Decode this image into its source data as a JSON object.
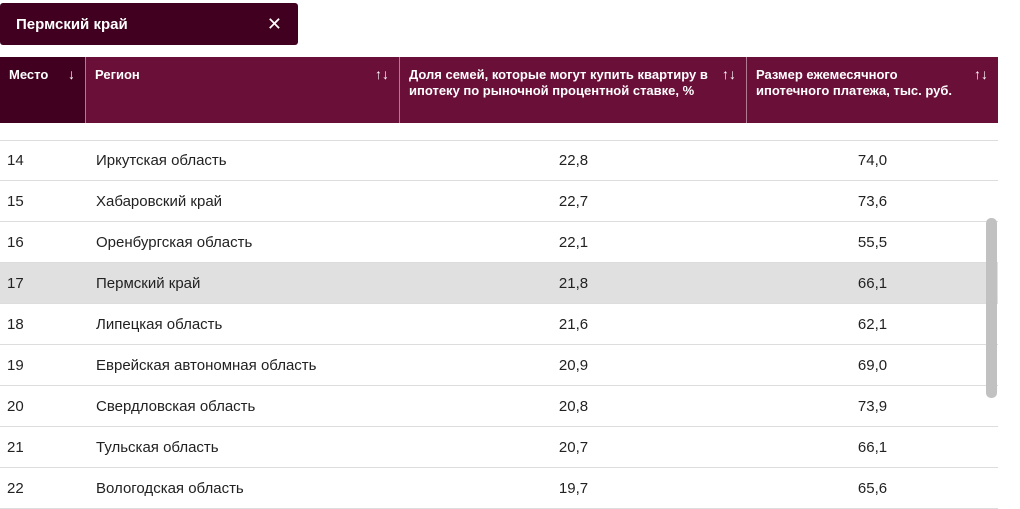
{
  "filter": {
    "value": "Пермский край",
    "close_icon": "close-icon"
  },
  "header": {
    "columns": [
      {
        "label": "Место",
        "sort": "↓"
      },
      {
        "label": "Регион",
        "sort": "↑↓"
      },
      {
        "label": "Доля семей, которые могут купить квартиру в ипотеку по рыночной процентной ставке, %",
        "sort": "↑↓"
      },
      {
        "label": "Размер ежемесячного ипотечного платежа, тыс. руб.",
        "sort": "↑↓"
      }
    ]
  },
  "colors": {
    "header": "#6a0f38",
    "header_active": "#41001f",
    "highlight": "#e0e0e0"
  },
  "highlighted_region": "Пермский край",
  "rows": [
    [
      "14",
      "Иркутская область",
      "22,8",
      "74,0"
    ],
    [
      "15",
      "Хабаровский край",
      "22,7",
      "73,6"
    ],
    [
      "16",
      "Оренбургская область",
      "22,1",
      "55,5"
    ],
    [
      "17",
      "Пермский край",
      "21,8",
      "66,1"
    ],
    [
      "18",
      "Липецкая область",
      "21,6",
      "62,1"
    ],
    [
      "19",
      "Еврейская автономная область",
      "20,9",
      "69,0"
    ],
    [
      "20",
      "Свердловская область",
      "20,8",
      "73,9"
    ],
    [
      "21",
      "Тульская область",
      "20,7",
      "66,1"
    ],
    [
      "22",
      "Вологодская область",
      "19,7",
      "65,6"
    ]
  ]
}
